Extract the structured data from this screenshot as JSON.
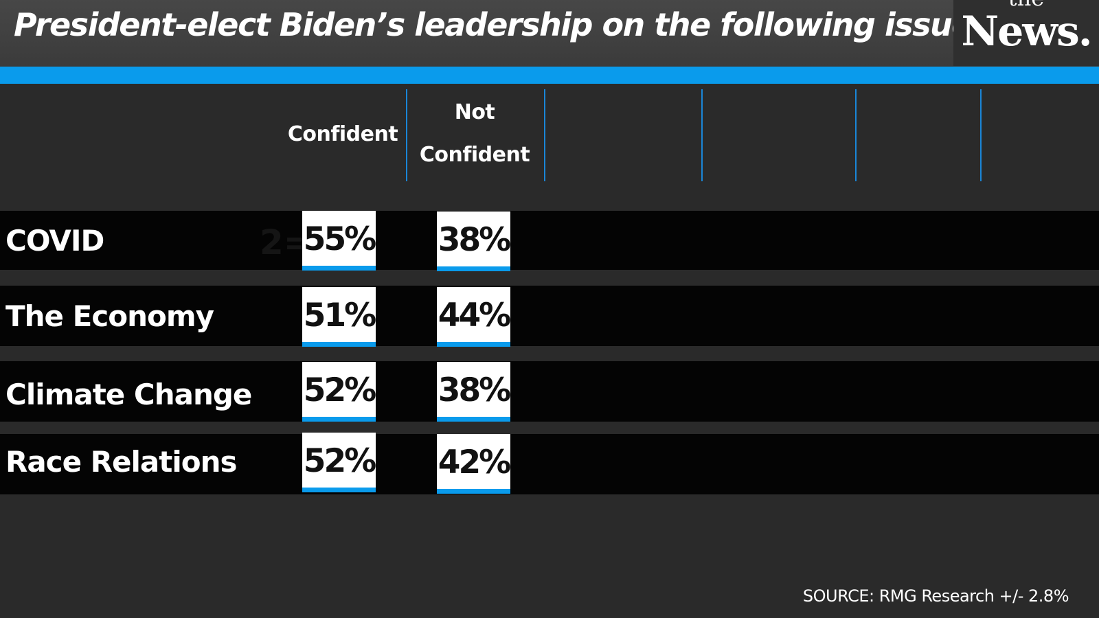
{
  "header": {
    "title": "President-elect Biden’s leadership on the following issues:"
  },
  "logo": {
    "line1": "the",
    "line2": "News."
  },
  "colors": {
    "accent": "#0a9bec",
    "background": "#2a2a2a",
    "row": "#040404",
    "cell": "#ffffff"
  },
  "chart_data": {
    "type": "table",
    "title": "President-elect Biden’s leadership on the following issues:",
    "columns": [
      "Confident",
      "Not Confident"
    ],
    "column_header_lines": {
      "confident": "Confident",
      "not_confident_1": "Not",
      "not_confident_2": "Confident"
    },
    "rows": [
      {
        "label": "COVID",
        "confident": "55%",
        "not_confident": "38%"
      },
      {
        "label": "The Economy",
        "confident": "51%",
        "not_confident": "44%"
      },
      {
        "label": "Climate Change",
        "confident": "52%",
        "not_confident": "38%"
      },
      {
        "label": "Race Relations",
        "confident": "52%",
        "not_confident": "42%"
      }
    ],
    "values": {
      "confident": [
        55,
        51,
        52,
        52
      ],
      "not_confident": [
        38,
        44,
        38,
        42
      ]
    },
    "ghost_text": "2=",
    "source": "SOURCE: RMG Research +/- 2.8%"
  }
}
